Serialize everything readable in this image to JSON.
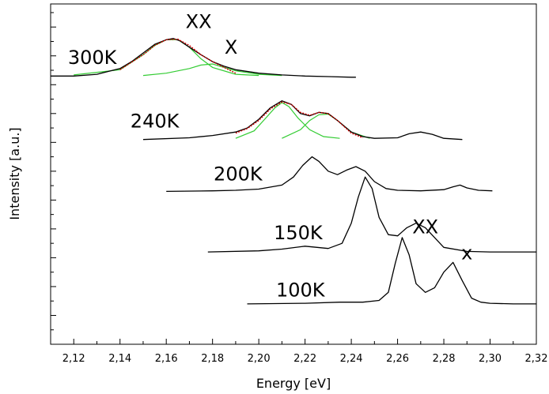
{
  "chart_data": {
    "type": "line",
    "xlabel": "Energy [eV]",
    "ylabel": "Intensity [a.u.]",
    "xlim": [
      2.11,
      2.32
    ],
    "x_ticks": [
      "2,12",
      "2,14",
      "2,16",
      "2,18",
      "2,20",
      "2,22",
      "2,24",
      "2,26",
      "2,28",
      "2,30",
      "2,32"
    ],
    "y_ticks_labeled": false,
    "colors": {
      "data": "#000000",
      "fit": "#cc0000",
      "component": "#33cc33"
    },
    "series": [
      {
        "name": "300K",
        "x": [
          2.11,
          2.12,
          2.13,
          2.14,
          2.145,
          2.15,
          2.155,
          2.16,
          2.163,
          2.166,
          2.17,
          2.175,
          2.18,
          2.185,
          2.19,
          2.2,
          2.21,
          2.22,
          2.23,
          2.24,
          2.242
        ],
        "y": [
          4.65,
          4.65,
          4.68,
          4.78,
          4.9,
          5.05,
          5.2,
          5.28,
          5.3,
          5.26,
          5.15,
          5.02,
          4.9,
          4.82,
          4.76,
          4.7,
          4.67,
          4.65,
          4.64,
          4.63,
          4.63
        ]
      },
      {
        "name": "240K",
        "x": [
          2.15,
          2.17,
          2.18,
          2.19,
          2.195,
          2.2,
          2.205,
          2.21,
          2.214,
          2.218,
          2.222,
          2.226,
          2.23,
          2.234,
          2.24,
          2.245,
          2.25,
          2.26,
          2.265,
          2.27,
          2.275,
          2.28,
          2.288
        ],
        "y": [
          3.55,
          3.58,
          3.62,
          3.68,
          3.75,
          3.9,
          4.1,
          4.22,
          4.16,
          4.0,
          3.96,
          4.02,
          4.0,
          3.88,
          3.68,
          3.6,
          3.57,
          3.58,
          3.65,
          3.68,
          3.64,
          3.57,
          3.55
        ]
      },
      {
        "name": "200K",
        "x": [
          2.16,
          2.18,
          2.19,
          2.2,
          2.21,
          2.215,
          2.219,
          2.223,
          2.226,
          2.23,
          2.234,
          2.238,
          2.242,
          2.246,
          2.25,
          2.255,
          2.26,
          2.27,
          2.28,
          2.284,
          2.287,
          2.29,
          2.295,
          2.301
        ],
        "y": [
          2.65,
          2.66,
          2.67,
          2.69,
          2.76,
          2.9,
          3.1,
          3.25,
          3.17,
          3.0,
          2.94,
          3.02,
          3.08,
          3.0,
          2.82,
          2.7,
          2.67,
          2.66,
          2.68,
          2.73,
          2.76,
          2.71,
          2.67,
          2.66
        ]
      },
      {
        "name": "150K",
        "x": [
          2.178,
          2.2,
          2.21,
          2.22,
          2.23,
          2.236,
          2.24,
          2.243,
          2.246,
          2.249,
          2.252,
          2.256,
          2.26,
          2.264,
          2.268,
          2.272,
          2.276,
          2.28,
          2.29,
          2.3,
          2.31,
          2.32
        ],
        "y": [
          1.6,
          1.62,
          1.65,
          1.7,
          1.66,
          1.75,
          2.1,
          2.55,
          2.9,
          2.7,
          2.2,
          1.9,
          1.88,
          2.02,
          2.1,
          2.02,
          1.85,
          1.68,
          1.61,
          1.6,
          1.6,
          1.6
        ]
      },
      {
        "name": "100K",
        "x": [
          2.195,
          2.22,
          2.235,
          2.245,
          2.252,
          2.256,
          2.259,
          2.262,
          2.265,
          2.268,
          2.272,
          2.276,
          2.28,
          2.284,
          2.288,
          2.292,
          2.296,
          2.3,
          2.31,
          2.32
        ],
        "y": [
          0.7,
          0.71,
          0.73,
          0.73,
          0.76,
          0.9,
          1.4,
          1.85,
          1.55,
          1.05,
          0.9,
          0.98,
          1.25,
          1.42,
          1.1,
          0.8,
          0.73,
          0.71,
          0.7,
          0.7
        ]
      }
    ],
    "fits": [
      {
        "x": [
          2.14,
          2.15,
          2.155,
          2.16,
          2.165,
          2.17,
          2.175,
          2.18,
          2.185,
          2.19
        ],
        "y": [
          4.76,
          5.02,
          5.18,
          5.28,
          5.29,
          5.18,
          5.02,
          4.9,
          4.8,
          4.7
        ]
      },
      {
        "x": [
          2.19,
          2.195,
          2.2,
          2.205,
          2.21,
          2.214,
          2.218,
          2.222,
          2.226,
          2.23,
          2.234,
          2.24,
          2.245
        ],
        "y": [
          3.66,
          3.74,
          3.88,
          4.08,
          4.2,
          4.16,
          4.02,
          3.97,
          4.02,
          4.0,
          3.88,
          3.66,
          3.58
        ]
      }
    ],
    "components": [
      {
        "x": [
          2.12,
          2.14,
          2.15,
          2.155,
          2.16,
          2.165,
          2.17,
          2.175,
          2.18,
          2.19,
          2.2
        ],
        "y": [
          4.67,
          4.76,
          5.02,
          5.18,
          5.28,
          5.28,
          5.15,
          4.95,
          4.8,
          4.68,
          4.66
        ]
      },
      {
        "x": [
          2.15,
          2.16,
          2.17,
          2.175,
          2.18,
          2.185,
          2.19,
          2.2,
          2.21
        ],
        "y": [
          4.66,
          4.7,
          4.78,
          4.84,
          4.86,
          4.8,
          4.74,
          4.68,
          4.66
        ]
      },
      {
        "x": [
          2.19,
          2.198,
          2.203,
          2.207,
          2.21,
          2.213,
          2.217,
          2.222,
          2.228,
          2.235
        ],
        "y": [
          3.57,
          3.7,
          3.92,
          4.1,
          4.19,
          4.12,
          3.92,
          3.72,
          3.6,
          3.57
        ]
      },
      {
        "x": [
          2.21,
          2.218,
          2.222,
          2.226,
          2.23,
          2.234,
          2.24,
          2.248
        ],
        "y": [
          3.57,
          3.72,
          3.88,
          3.98,
          3.99,
          3.88,
          3.68,
          3.57
        ]
      }
    ],
    "annotations": [
      {
        "text": "300K",
        "x": 2.128,
        "y": 4.86
      },
      {
        "text": "XX",
        "x": 2.174,
        "y": 5.48
      },
      {
        "text": "X",
        "x": 2.188,
        "y": 5.04
      },
      {
        "text": "240K",
        "x": 2.155,
        "y": 3.76
      },
      {
        "text": "200K",
        "x": 2.191,
        "y": 2.84
      },
      {
        "text": "150K",
        "x": 2.217,
        "y": 1.82
      },
      {
        "text": "100K",
        "x": 2.218,
        "y": 0.83
      },
      {
        "text": "XX",
        "x": 2.272,
        "y": 1.92
      },
      {
        "text": "x",
        "x": 2.29,
        "y": 1.47
      }
    ]
  }
}
